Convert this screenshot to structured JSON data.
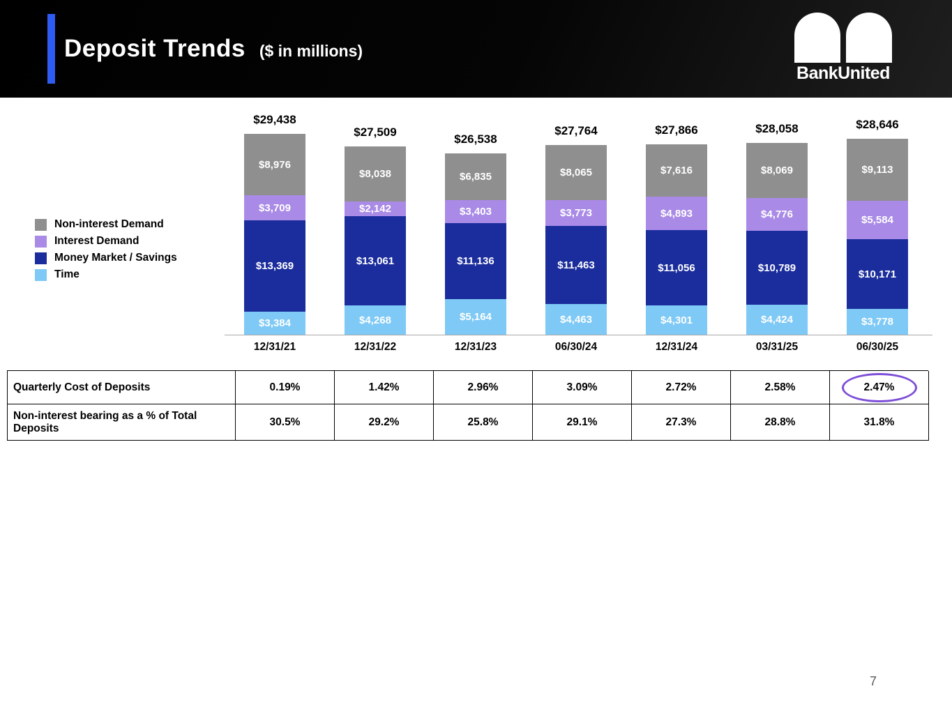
{
  "header": {
    "title": "Deposit Trends",
    "subtitle": "($ in millions)",
    "logo_text": "BankUnited",
    "accent_color": "#2f5cf0"
  },
  "chart_data": {
    "type": "bar",
    "stacked": true,
    "title": "Deposit Trends ($ in millions)",
    "categories": [
      "12/31/21",
      "12/31/22",
      "12/31/23",
      "06/30/24",
      "12/31/24",
      "03/31/25",
      "06/30/25"
    ],
    "totals": [
      "$29,438",
      "$27,509",
      "$26,538",
      "$27,764",
      "$27,866",
      "$28,058",
      "$28,646"
    ],
    "series": [
      {
        "name": "Non-interest Demand",
        "color": "#8f8f8f",
        "values": [
          8976,
          8038,
          6835,
          8065,
          7616,
          8069,
          9113
        ]
      },
      {
        "name": "Interest Demand",
        "color": "#a98ae6",
        "values": [
          3709,
          2142,
          3403,
          3773,
          4893,
          4776,
          5584
        ]
      },
      {
        "name": "Money Market / Savings",
        "color": "#1b2d9c",
        "values": [
          13369,
          13061,
          11136,
          11463,
          11056,
          10789,
          10171
        ]
      },
      {
        "name": "Time",
        "color": "#7ec9f5",
        "values": [
          3384,
          4268,
          5164,
          4463,
          4301,
          4424,
          3778
        ]
      }
    ],
    "ylim": [
      0,
      30000
    ],
    "grid": false,
    "legend_position": "left",
    "xlabel": "",
    "ylabel": ""
  },
  "table": {
    "rows": [
      {
        "label": "Quarterly Cost of Deposits",
        "values": [
          "0.19%",
          "1.42%",
          "2.96%",
          "3.09%",
          "2.72%",
          "2.58%",
          "2.47%"
        ],
        "highlight_last": true
      },
      {
        "label": "Non-interest bearing as a % of Total Deposits",
        "values": [
          "30.5%",
          "29.2%",
          "25.8%",
          "29.1%",
          "27.3%",
          "28.8%",
          "31.8%"
        ],
        "highlight_last": false
      }
    ]
  },
  "page_number": "7"
}
